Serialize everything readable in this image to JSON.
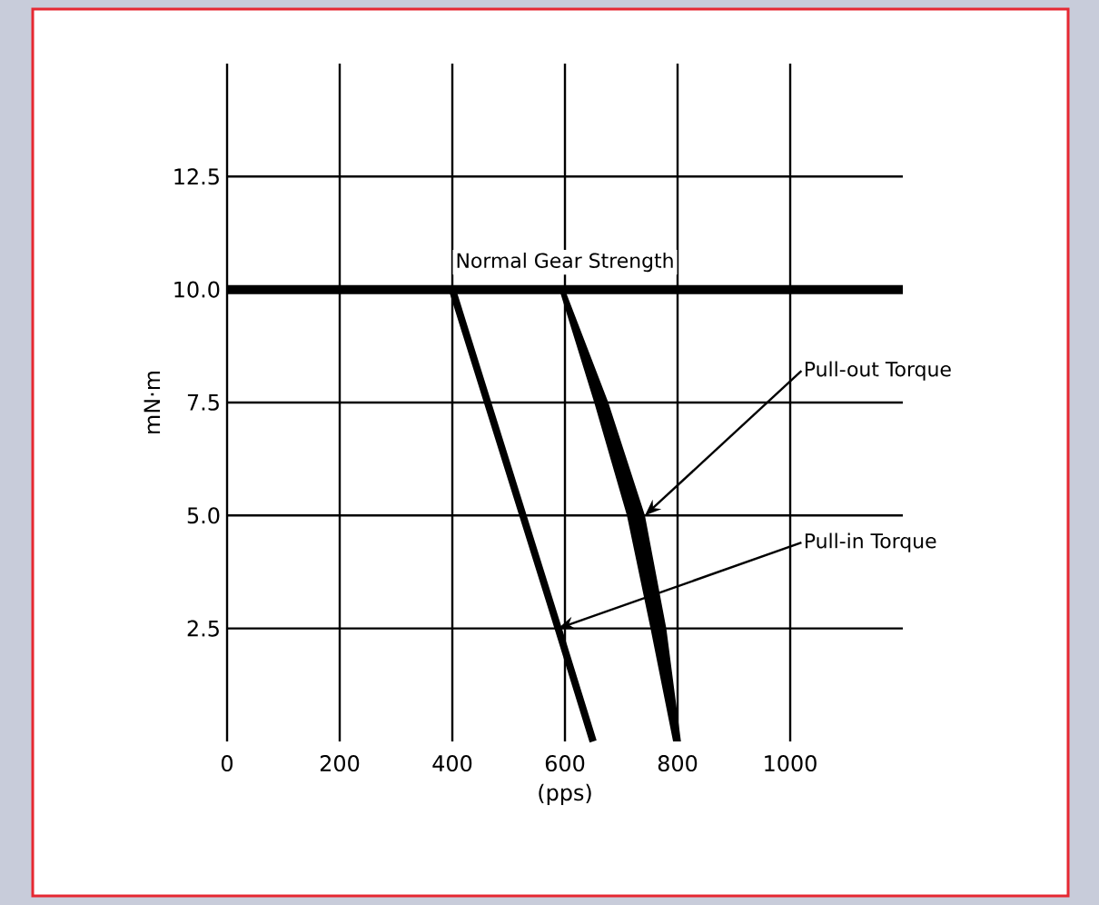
{
  "chart_data": {
    "type": "line",
    "xlabel": "(pps)",
    "ylabel": "mN·m",
    "xlim": [
      0,
      1200
    ],
    "ylim": [
      0,
      15
    ],
    "xticks": [
      0,
      200,
      400,
      600,
      800,
      1000
    ],
    "yticks": [
      {
        "value": 2.5,
        "label": "2.5"
      },
      {
        "value": 5,
        "label": "5.0"
      },
      {
        "value": 7.5,
        "label": "7.5"
      },
      {
        "value": 10,
        "label": "10.0"
      },
      {
        "value": 12.5,
        "label": "12.5"
      }
    ],
    "grid": true,
    "ref_lines": [
      {
        "axis": "y",
        "value": 10,
        "label": "Normal Gear Strength",
        "color": "#000000"
      }
    ],
    "series": [
      {
        "color": "#000000",
        "x": [
          400,
          588,
          650
        ],
        "values": [
          10,
          2.5,
          0
        ]
      },
      {
        "type": "area",
        "color": "#000000",
        "x": [
          590,
          652,
          710,
          752,
          792,
          806,
          780,
          742,
          677,
          600
        ],
        "values": [
          10,
          7.5,
          5,
          2.5,
          0,
          0,
          2.5,
          5,
          7.5,
          10
        ]
      }
    ],
    "annotations": [
      {
        "text": "Pull-out Torque",
        "x": 742,
        "y": 5
      },
      {
        "text": "Pull-in Torque",
        "x": 588,
        "y": 2.5
      }
    ]
  }
}
